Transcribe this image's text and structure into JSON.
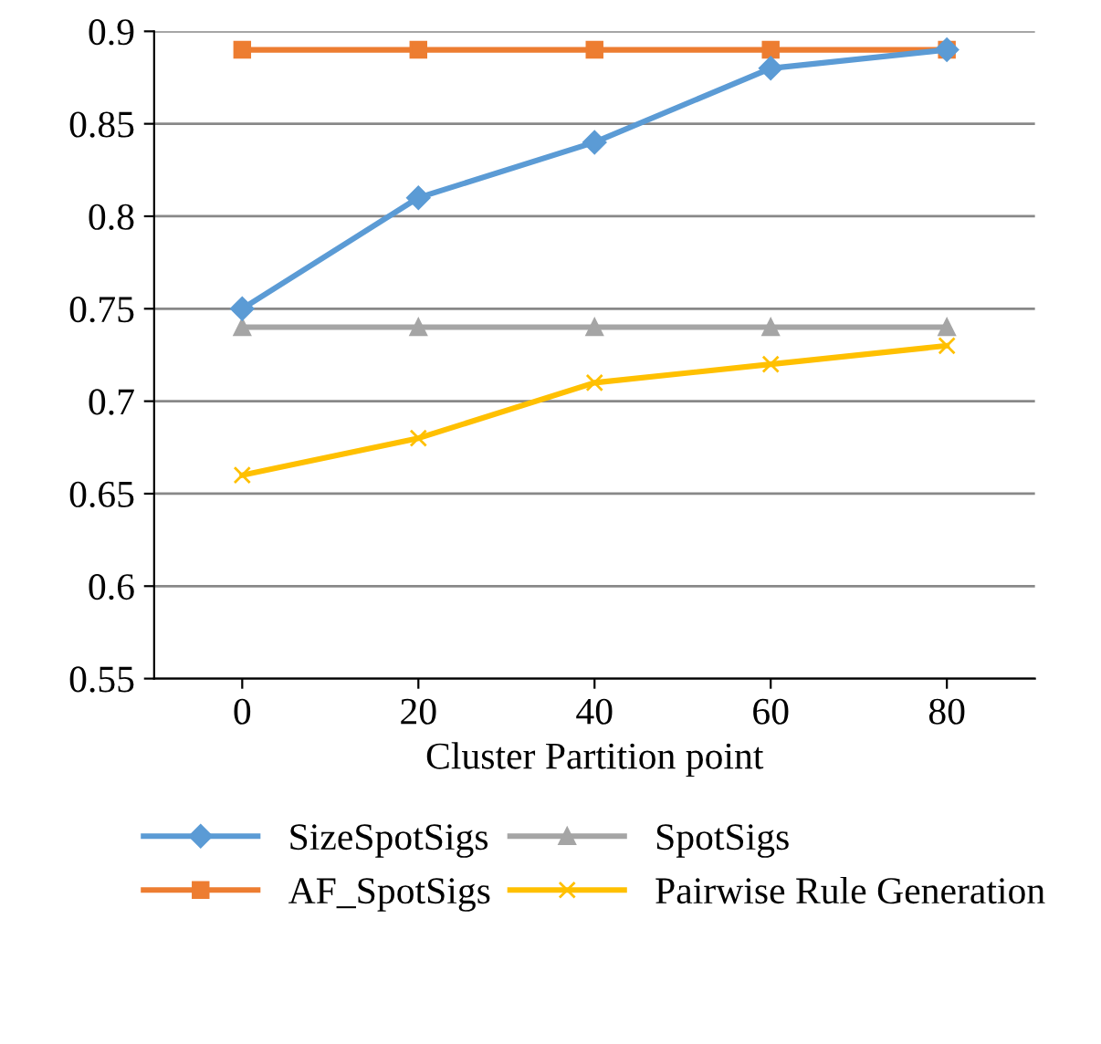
{
  "chart_data": {
    "type": "line",
    "xlabel": "Cluster Partition point",
    "x": [
      0,
      20,
      40,
      60,
      80
    ],
    "xlim": [
      -10,
      90
    ],
    "xticks": [
      0,
      20,
      40,
      60,
      80
    ],
    "ylim": [
      0.55,
      0.9
    ],
    "yticks": [
      0.55,
      0.6,
      0.65,
      0.7,
      0.75,
      0.8,
      0.85,
      0.9
    ],
    "grid": "y",
    "legend": "bottom",
    "series": [
      {
        "name": "SizeSpotSigs",
        "color": "#5b9bd5",
        "marker": "diamond",
        "values": [
          0.75,
          0.81,
          0.84,
          0.88,
          0.89
        ]
      },
      {
        "name": "AF_SpotSigs",
        "color": "#ed7d31",
        "marker": "square",
        "values": [
          0.89,
          0.89,
          0.89,
          0.89,
          0.89
        ]
      },
      {
        "name": "SpotSigs",
        "color": "#a5a5a5",
        "marker": "triangle",
        "values": [
          0.74,
          0.74,
          0.74,
          0.74,
          0.74
        ]
      },
      {
        "name": "Pairwise Rule Generation",
        "color": "#ffc000",
        "marker": "cross",
        "values": [
          0.66,
          0.68,
          0.71,
          0.72,
          0.73
        ]
      }
    ]
  }
}
